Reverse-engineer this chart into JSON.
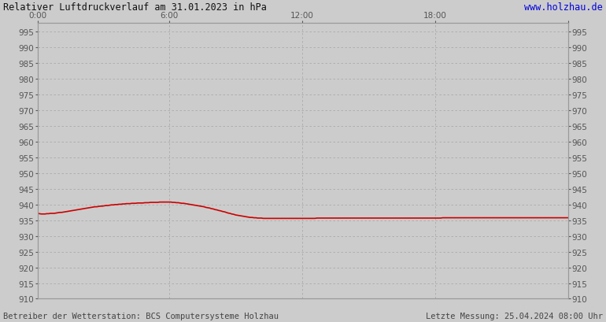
{
  "title_left": "Relativer Luftdruckverlauf am 31.01.2023 in hPa",
  "title_right": "www.holzhau.de",
  "title_right_color": "#0000dd",
  "footer_left": "Betreiber der Wetterstation: BCS Computersysteme Holzhau",
  "footer_right": "Letzte Messung: 25.04.2024 08:00 Uhr",
  "footer_color": "#444444",
  "bg_color": "#cccccc",
  "plot_bg_color": "#cccccc",
  "line_color": "#cc0000",
  "line_width": 1.2,
  "grid_color": "#aaaaaa",
  "ylim": [
    910,
    998
  ],
  "ytick_step": 5,
  "xlim_min": 0,
  "xlim_max": 287,
  "xtick_positions": [
    0,
    71,
    143,
    215,
    287
  ],
  "xtick_labels": [
    "0:00",
    "6:00",
    "12:00",
    "18:00",
    ""
  ],
  "pressure_values": [
    937.2,
    937.1,
    937.0,
    937.0,
    937.0,
    937.1,
    937.1,
    937.2,
    937.2,
    937.2,
    937.3,
    937.4,
    937.5,
    937.5,
    937.6,
    937.7,
    937.8,
    937.9,
    938.0,
    938.1,
    938.2,
    938.3,
    938.4,
    938.5,
    938.6,
    938.7,
    938.8,
    938.9,
    939.0,
    939.1,
    939.2,
    939.3,
    939.3,
    939.4,
    939.5,
    939.5,
    939.6,
    939.7,
    939.7,
    939.8,
    939.9,
    939.9,
    940.0,
    940.0,
    940.1,
    940.1,
    940.2,
    940.2,
    940.3,
    940.3,
    940.3,
    940.4,
    940.4,
    940.4,
    940.5,
    940.5,
    940.5,
    940.5,
    940.6,
    940.6,
    940.6,
    940.7,
    940.7,
    940.7,
    940.7,
    940.7,
    940.8,
    940.8,
    940.8,
    940.8,
    940.8,
    940.8,
    940.8,
    940.7,
    940.7,
    940.6,
    940.6,
    940.5,
    940.4,
    940.4,
    940.3,
    940.2,
    940.1,
    940.0,
    939.9,
    939.8,
    939.7,
    939.6,
    939.5,
    939.4,
    939.3,
    939.1,
    939.0,
    938.9,
    938.7,
    938.6,
    938.4,
    938.3,
    938.1,
    938.0,
    937.8,
    937.7,
    937.5,
    937.3,
    937.2,
    937.0,
    936.9,
    936.7,
    936.6,
    936.5,
    936.4,
    936.3,
    936.2,
    936.1,
    936.0,
    935.9,
    935.9,
    935.8,
    935.8,
    935.7,
    935.7,
    935.7,
    935.6,
    935.6,
    935.6,
    935.6,
    935.6,
    935.6,
    935.6,
    935.6,
    935.6,
    935.6,
    935.6,
    935.6,
    935.6,
    935.6,
    935.6,
    935.6,
    935.6,
    935.6,
    935.6,
    935.6,
    935.6,
    935.6,
    935.6,
    935.6,
    935.6,
    935.6,
    935.6,
    935.6,
    935.6,
    935.7,
    935.7,
    935.7,
    935.7,
    935.7,
    935.7,
    935.7,
    935.7,
    935.7,
    935.7,
    935.7,
    935.7,
    935.7,
    935.7,
    935.7,
    935.7,
    935.7,
    935.7,
    935.7,
    935.7,
    935.7,
    935.7,
    935.7,
    935.7,
    935.7,
    935.7,
    935.7,
    935.7,
    935.7,
    935.7,
    935.7,
    935.7,
    935.7,
    935.7,
    935.7,
    935.7,
    935.7,
    935.7,
    935.7,
    935.7,
    935.7,
    935.7,
    935.7,
    935.7,
    935.7,
    935.7,
    935.7,
    935.7,
    935.7,
    935.7,
    935.7,
    935.7,
    935.7,
    935.7,
    935.7,
    935.7,
    935.7,
    935.7,
    935.7,
    935.7,
    935.7,
    935.7,
    935.7,
    935.7,
    935.7,
    935.7,
    935.7,
    935.7,
    935.8,
    935.8,
    935.8,
    935.8,
    935.8,
    935.8,
    935.8,
    935.8,
    935.8,
    935.8,
    935.8,
    935.8,
    935.8,
    935.8,
    935.8,
    935.8,
    935.8,
    935.8,
    935.8,
    935.8,
    935.8,
    935.8,
    935.8,
    935.8,
    935.8,
    935.8,
    935.8,
    935.8,
    935.8,
    935.8,
    935.8,
    935.8,
    935.8,
    935.8,
    935.8,
    935.8,
    935.8,
    935.8,
    935.8,
    935.8,
    935.8,
    935.8,
    935.8,
    935.8,
    935.8,
    935.8,
    935.8,
    935.8,
    935.8,
    935.8,
    935.8,
    935.8,
    935.8,
    935.8,
    935.8,
    935.8,
    935.8,
    935.8,
    935.8,
    935.8,
    935.8,
    935.8,
    935.8,
    935.8,
    935.8,
    935.8,
    935.8,
    935.8,
    935.8
  ]
}
